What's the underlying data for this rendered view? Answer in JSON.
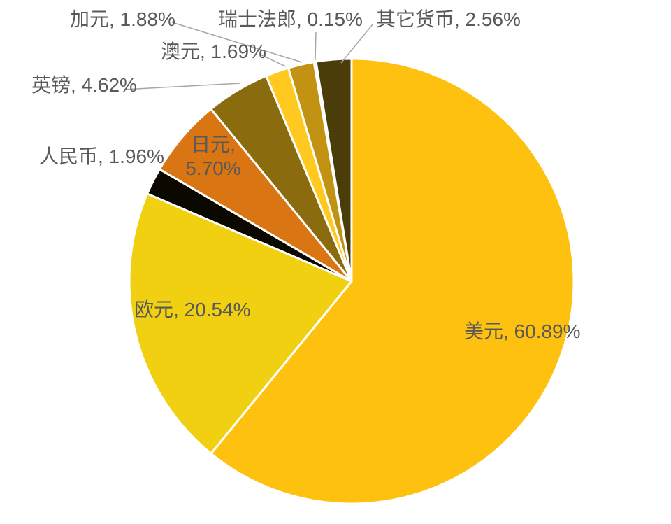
{
  "chart_data": {
    "type": "pie",
    "unit": "%",
    "direction": "clockwise",
    "start_angle_deg": 0,
    "legend_position": "none",
    "grid": false,
    "background_color": "#FFFFFF",
    "label_text_color": "#595959",
    "leader_line_color": "#A6A6A6",
    "slice_border_color": "#FFFFFF",
    "categories": [
      "美元",
      "欧元",
      "人民币",
      "日元",
      "英镑",
      "澳元",
      "加元",
      "瑞士法郎",
      "其它货币"
    ],
    "values": [
      60.89,
      20.54,
      1.96,
      5.7,
      4.62,
      1.69,
      1.88,
      0.15,
      2.56
    ],
    "colors": [
      "#FFC110",
      "#F1CF11",
      "#0B0800",
      "#DA7514",
      "#8A6C0E",
      "#FFC91F",
      "#C29212",
      "#B08D00",
      "#4A3D0A"
    ],
    "data_labels": "category, percent"
  },
  "labels": {
    "usd": {
      "text": "美元, 60.89%"
    },
    "eur": {
      "text": "欧元, 20.54%"
    },
    "cny": {
      "text": "人民币, 1.96%"
    },
    "jpy": {
      "line1": "日元,",
      "line2": "5.70%"
    },
    "gbp": {
      "text": "英镑, 4.62%"
    },
    "aud": {
      "text": "澳元, 1.69%"
    },
    "cad": {
      "text": "加元, 1.88%"
    },
    "chf": {
      "text": "瑞士法郎, 0.15%"
    },
    "other": {
      "text": "其它货币, 2.56%"
    }
  }
}
